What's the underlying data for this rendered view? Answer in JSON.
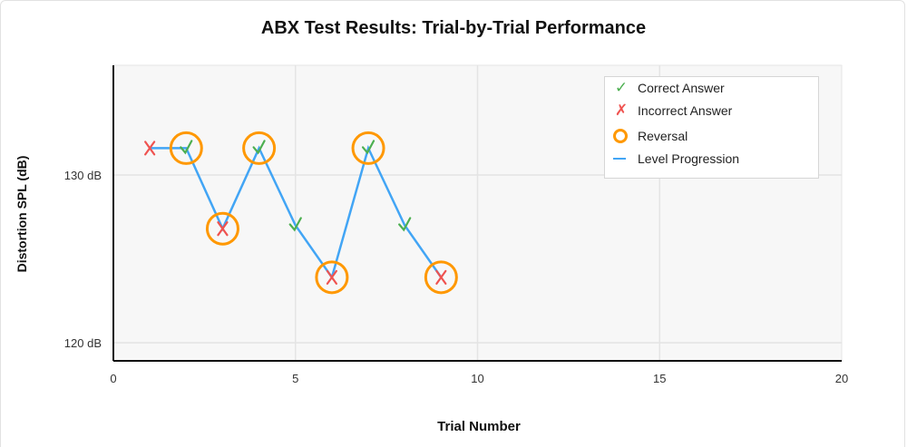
{
  "chart_data": {
    "type": "line",
    "title": "ABX Test Results: Trial-by-Trial Performance",
    "xlabel": "Trial Number",
    "ylabel": "Distortion SPL (dB)",
    "xlim": [
      0,
      20
    ],
    "ylim": [
      119,
      136.6
    ],
    "x_ticks": [
      0,
      5,
      10,
      15,
      20
    ],
    "y_ticks": [
      120,
      130
    ],
    "y_tick_labels": [
      "120 dB",
      "130 dB"
    ],
    "grid": true,
    "legend_position": "upper right",
    "legend": [
      "Correct Answer",
      "Incorrect Answer",
      "Reversal",
      "Level Progression"
    ],
    "series": [
      {
        "name": "Level Progression",
        "type": "line",
        "color": "#42a5f5",
        "x": [
          1,
          2,
          3,
          4,
          5,
          6,
          7,
          8,
          9
        ],
        "values": [
          131.6,
          131.6,
          126.8,
          131.6,
          127.0,
          123.9,
          131.6,
          127.0,
          123.9
        ]
      },
      {
        "name": "Correct Answer",
        "type": "scatter",
        "marker": "check",
        "color": "#4caf50",
        "x": [
          2,
          4,
          5,
          7,
          8
        ],
        "values": [
          131.6,
          131.6,
          127.0,
          131.6,
          127.0
        ]
      },
      {
        "name": "Incorrect Answer",
        "type": "scatter",
        "marker": "x",
        "color": "#ef5350",
        "x": [
          1,
          3,
          6,
          9
        ],
        "values": [
          131.6,
          126.8,
          123.9,
          123.9
        ]
      },
      {
        "name": "Reversal",
        "type": "scatter",
        "marker": "circle-open",
        "color": "#ff9800",
        "x": [
          2,
          3,
          4,
          6,
          7,
          9
        ],
        "values": [
          131.6,
          126.8,
          131.6,
          123.9,
          131.6,
          123.9
        ]
      }
    ]
  },
  "colors": {
    "correct": "#4caf50",
    "incorrect": "#ef5350",
    "reversal": "#ff9800",
    "line": "#42a5f5",
    "plot_bg": "#f7f7f7",
    "grid": "#e4e4e4"
  },
  "legend": {
    "items": [
      {
        "label": "Correct Answer",
        "icon": "check-icon"
      },
      {
        "label": "Incorrect Answer",
        "icon": "x-icon"
      },
      {
        "label": "Reversal",
        "icon": "circle-icon"
      },
      {
        "label": "Level Progression",
        "icon": "line-icon"
      }
    ]
  },
  "symbols": {
    "check": "✓",
    "cross": "✗"
  }
}
